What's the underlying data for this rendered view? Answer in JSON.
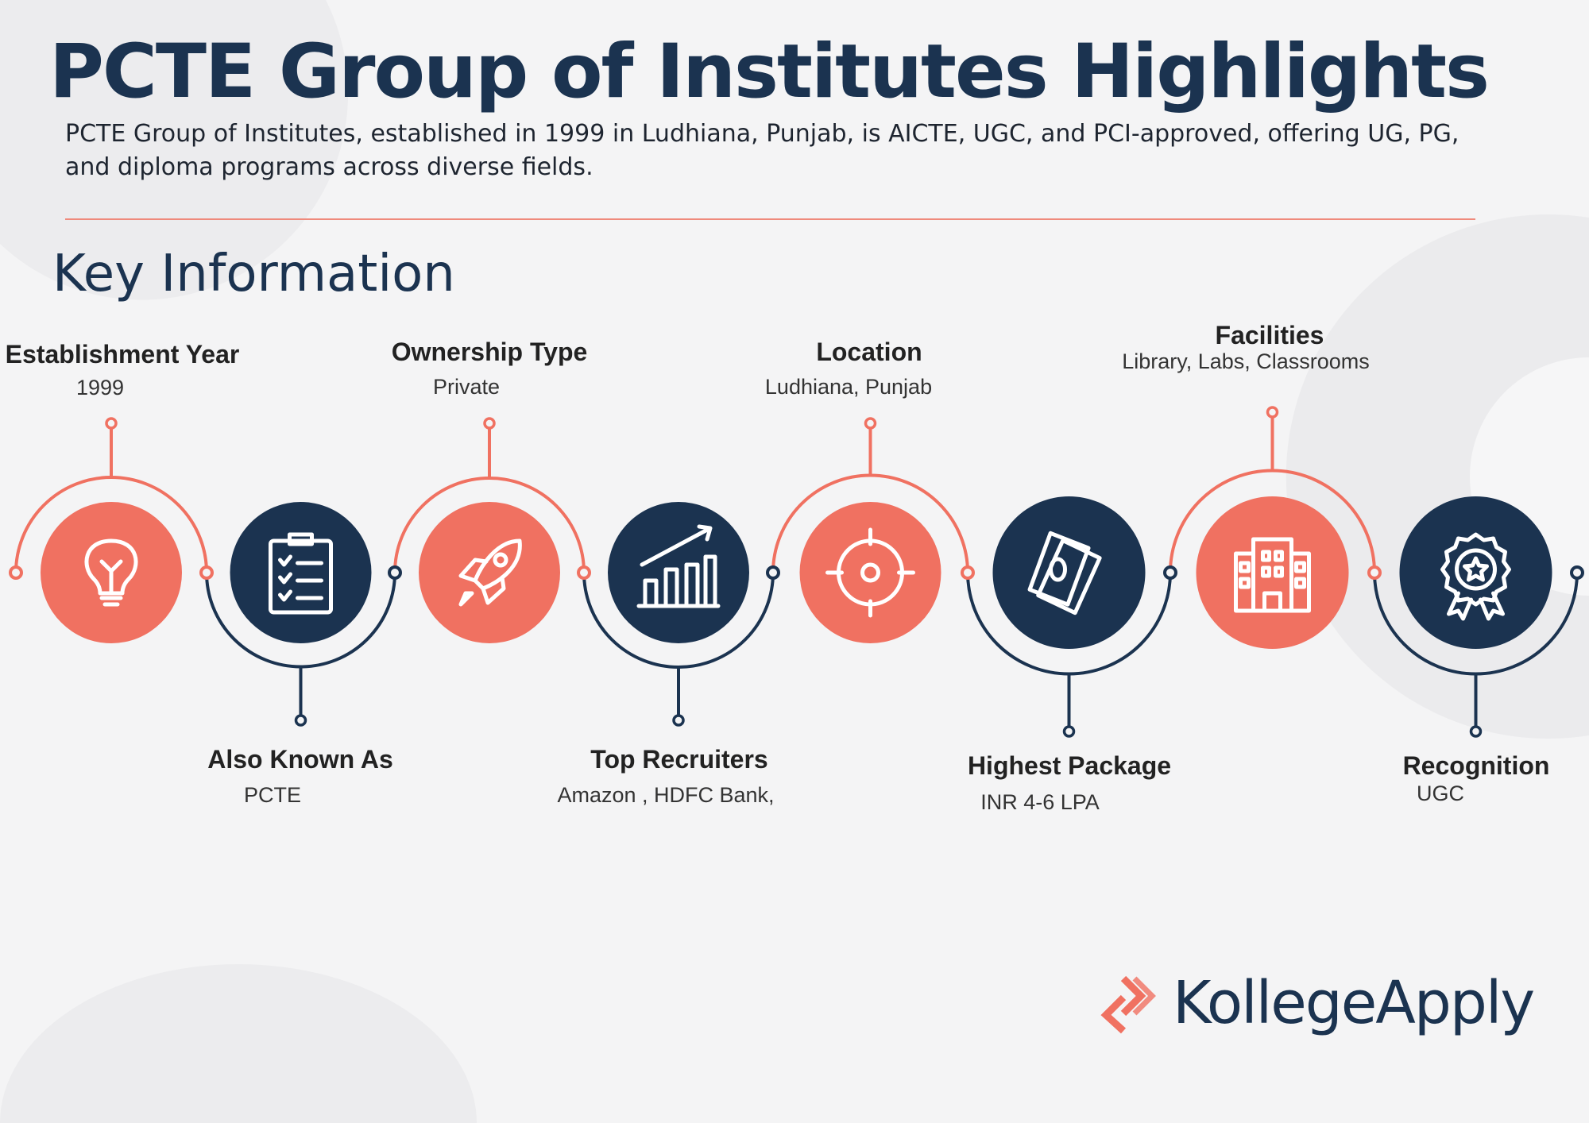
{
  "header": {
    "title": "PCTE Group of Institutes Highlights",
    "subtitle": "PCTE Group of Institutes, established in 1999 in Ludhiana, Punjab, is AICTE, UGC, and PCI-approved, offering UG, PG, and diploma programs across diverse fields."
  },
  "section_title": "Key Information",
  "colors": {
    "navy": "#1b3350",
    "coral": "#f07161"
  },
  "items": [
    {
      "label": "Establishment Year",
      "value": "1999",
      "icon": "lightbulb-icon"
    },
    {
      "label": "Also Known As",
      "value": "PCTE",
      "icon": "clipboard-checklist-icon"
    },
    {
      "label": "Ownership Type",
      "value": "Private",
      "icon": "rocket-icon"
    },
    {
      "label": "Top Recruiters",
      "value": "Amazon , HDFC Bank,",
      "icon": "growth-chart-icon"
    },
    {
      "label": "Location",
      "value": "Ludhiana, Punjab",
      "icon": "target-icon"
    },
    {
      "label": "Highest Package",
      "value": "INR 4-6 LPA",
      "icon": "money-icon"
    },
    {
      "label": "Facilities",
      "value": "Library, Labs, Classrooms",
      "icon": "building-icon"
    },
    {
      "label": "Recognition",
      "value": "UGC",
      "icon": "award-badge-icon"
    }
  ],
  "brand": {
    "name": "KollegeApply"
  }
}
